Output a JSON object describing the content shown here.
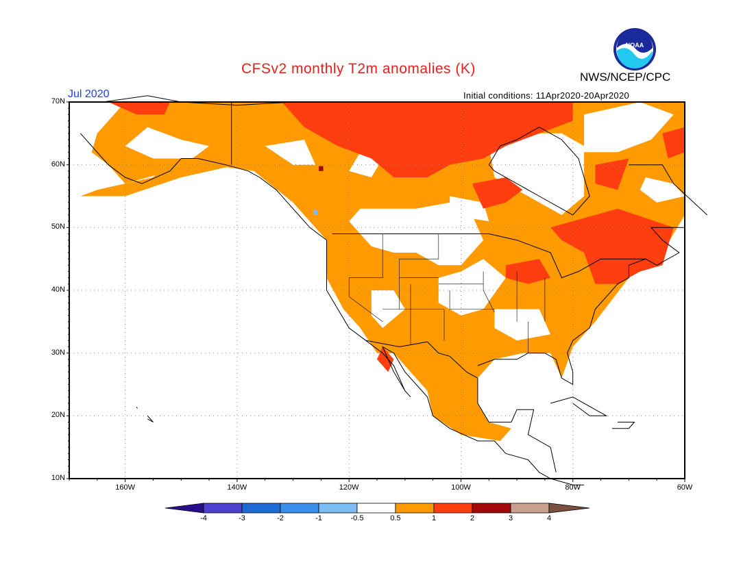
{
  "header": {
    "title": "CFSv2 monthly T2m anomalies (K)",
    "agency": "NWS/NCEP/CPC",
    "month": "Jul 2020",
    "initial_conditions": "Initial conditions: 11Apr2020-20Apr2020",
    "logo_text": "NOAA"
  },
  "map": {
    "lat_labels": [
      "70N",
      "60N",
      "50N",
      "40N",
      "30N",
      "20N",
      "10N"
    ],
    "lon_labels": [
      "160W",
      "140W",
      "120W",
      "100W",
      "80W",
      "60W"
    ],
    "extent": {
      "lon_min": -170,
      "lon_max": -60,
      "lat_min": 10,
      "lat_max": 70
    }
  },
  "colorbar": {
    "labels": [
      "-4",
      "-3",
      "-2",
      "-1",
      "-0.5",
      "0.5",
      "1",
      "2",
      "3",
      "4"
    ],
    "colors": [
      "#2a0d8c",
      "#5040d0",
      "#1e6ad8",
      "#3b90ee",
      "#7bbcf2",
      "#ffffff",
      "#ff9a00",
      "#ff3e10",
      "#a40808",
      "#c8a090",
      "#7a5040"
    ]
  },
  "colors": {
    "anom_05_1": "#ff9a00",
    "anom_1_2": "#ff3e10",
    "anom_2_3": "#a40808",
    "anom_neg": "#7bbcf2",
    "title": "#e8201c",
    "month": "#1e3cff"
  }
}
